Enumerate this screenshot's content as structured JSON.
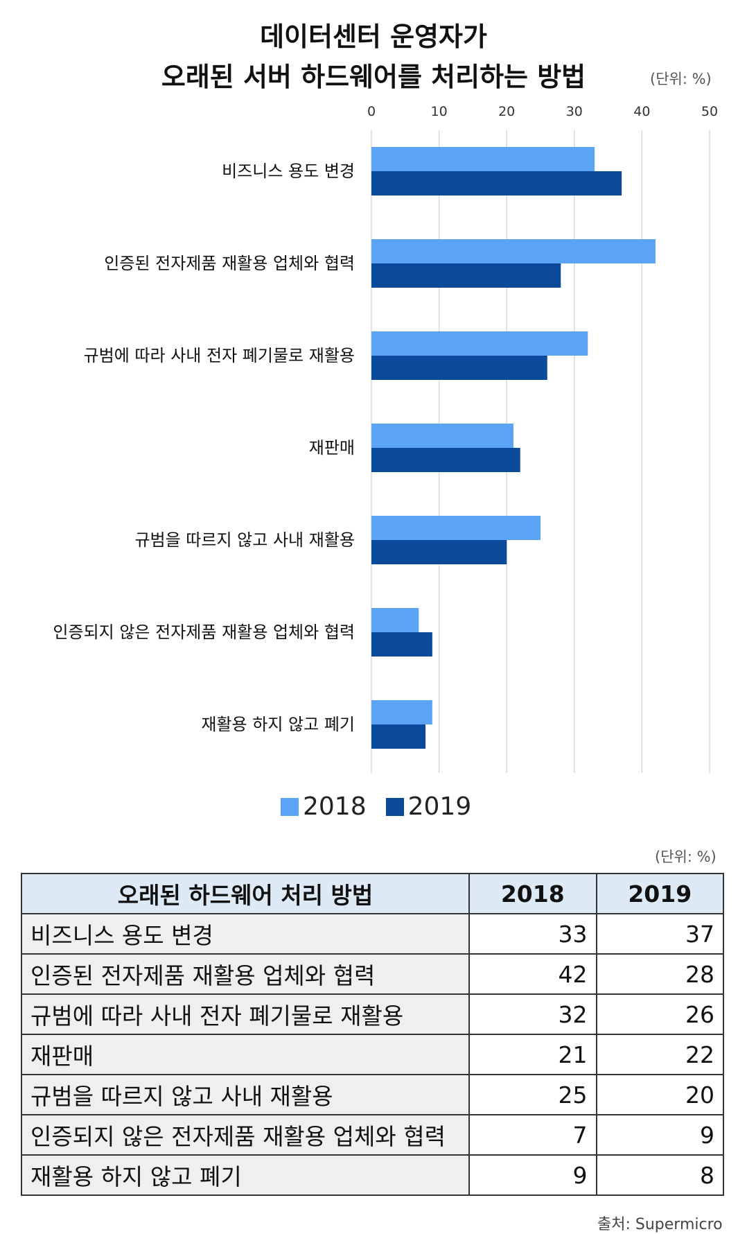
{
  "chart_data": {
    "type": "bar",
    "orientation": "horizontal",
    "title": [
      "데이터센터 운영자가",
      "오래된 서버 하드웨어를 처리하는 방법"
    ],
    "unit": "(단위: %)",
    "categories": [
      "비즈니스 용도 변경",
      "인증된 전자제품 재활용 업체와 협력",
      "규범에 따라 사내 전자 폐기물로 재활용",
      "재판매",
      "규범을 따르지 않고 사내 재활용",
      "인증되지 않은 전자제품 재활용 업체와 협력",
      "재활용 하지 않고 폐기"
    ],
    "series": [
      {
        "name": "2018",
        "values": [
          33,
          42,
          32,
          21,
          25,
          7,
          9
        ],
        "color": "#5ba3f5"
      },
      {
        "name": "2019",
        "values": [
          37,
          28,
          26,
          22,
          20,
          9,
          8
        ],
        "color": "#0b4a9a"
      }
    ],
    "xlim": [
      0,
      50
    ],
    "xticks": [
      "0",
      "10",
      "20",
      "30",
      "40",
      "50"
    ],
    "grid": true,
    "legend": "bottom-center"
  },
  "table": {
    "unit": "(단위: %)",
    "headers": [
      "오래된 하드웨어 처리 방법",
      "2018",
      "2019"
    ],
    "rows": [
      [
        "비즈니스 용도 변경",
        "33",
        "37"
      ],
      [
        "인증된 전자제품 재활용 업체와 협력",
        "42",
        "28"
      ],
      [
        "규범에 따라 사내 전자 폐기물로 재활용",
        "32",
        "26"
      ],
      [
        "재판매",
        "21",
        "22"
      ],
      [
        "규범을 따르지 않고 사내 재활용",
        "25",
        "20"
      ],
      [
        "인증되지 않은 전자제품 재활용 업체와 협력",
        "7",
        "9"
      ],
      [
        "재활용 하지 않고 폐기",
        "9",
        "8"
      ]
    ]
  },
  "source": "출처: Supermicro"
}
